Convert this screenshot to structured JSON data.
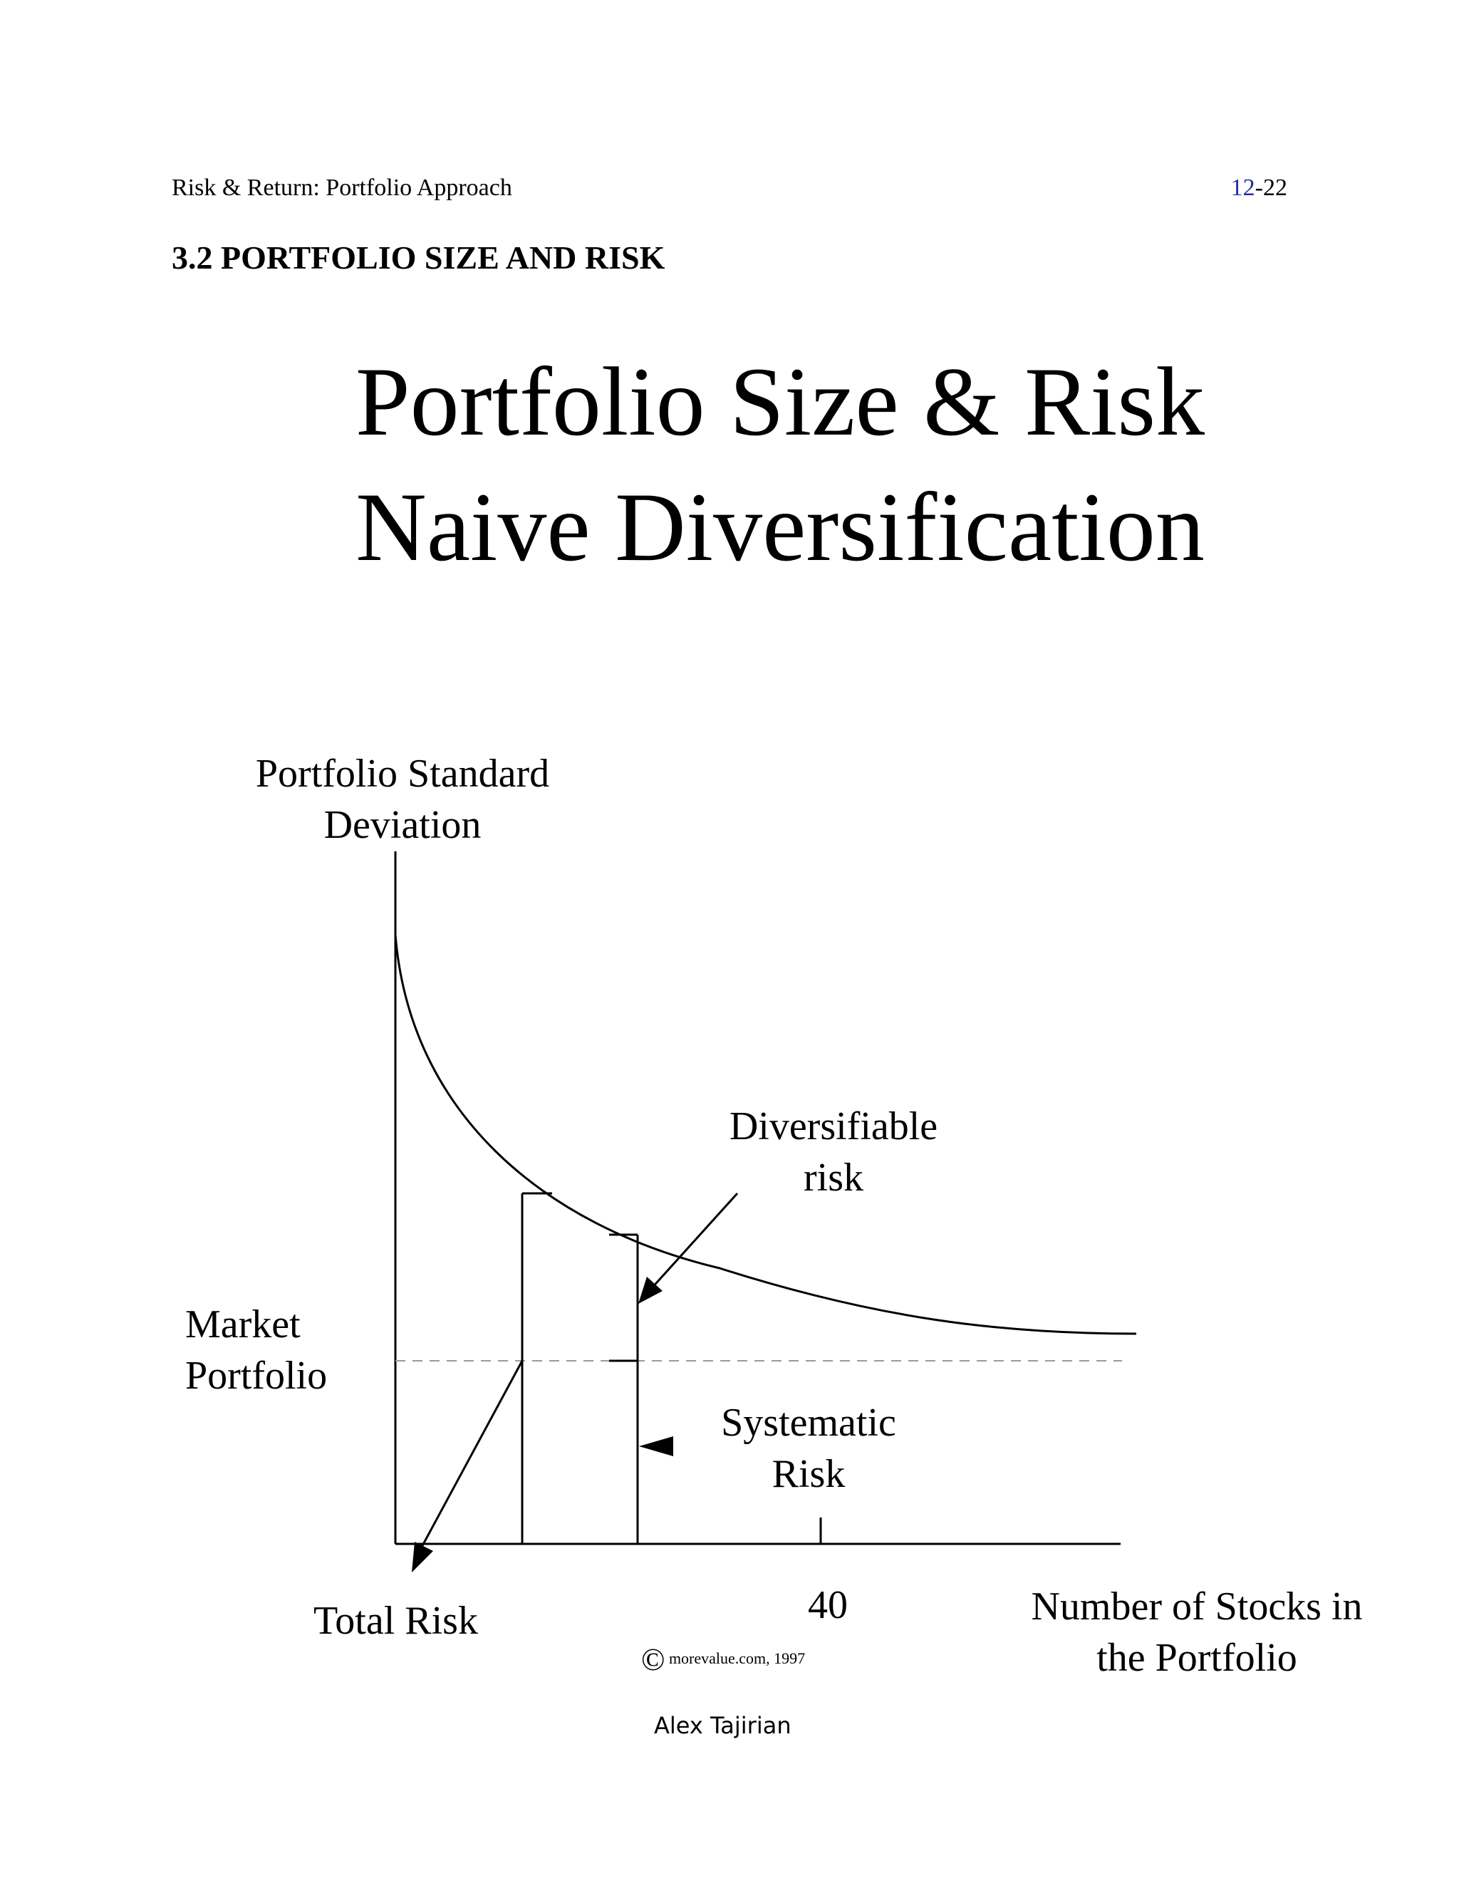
{
  "header": {
    "running_title": "Risk & Return: Portfolio Approach",
    "page_chapter": "12",
    "page_sep_num": "-22"
  },
  "section_heading": "3.2 PORTFOLIO SIZE AND RISK",
  "slide_title": {
    "line1": "Portfolio Size & Risk",
    "line2": "Naive Diversification"
  },
  "chart_data": {
    "type": "line",
    "title": "Portfolio Size & Risk Naive Diversification",
    "ylabel_line1": "Portfolio Standard",
    "ylabel_line2": "Deviation",
    "xlabel_line1": "Number of Stocks in",
    "xlabel_line2": "the Portfolio",
    "x_ticks": [
      "40"
    ],
    "series": [
      {
        "values_description": "portfolio standard deviation falls as the number of stocks grows and levels off above the market portfolio line",
        "x": [
          1,
          5,
          10,
          15,
          20,
          25,
          30,
          35,
          40,
          50,
          60
        ],
        "y": [
          1.0,
          0.78,
          0.62,
          0.52,
          0.45,
          0.4,
          0.37,
          0.345,
          0.33,
          0.31,
          0.3
        ]
      }
    ],
    "reference_line": {
      "label_line1": "Market",
      "label_line2": "Portfolio",
      "y": 0.285,
      "style": "dashed"
    },
    "annotations": {
      "diversifiable_line1": "Diversifiable",
      "diversifiable_line2": "risk",
      "systematic_line1": "Systematic",
      "systematic_line2": "Risk",
      "total_risk": "Total Risk"
    }
  },
  "copyright": {
    "symbol": "©",
    "text": "morevalue.com, 1997"
  },
  "author": "Alex Tajirian"
}
